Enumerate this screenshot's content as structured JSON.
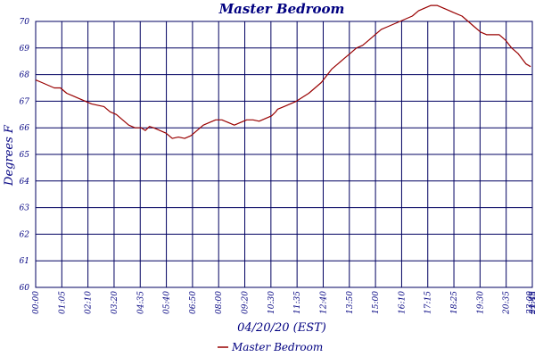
{
  "chart_data": {
    "type": "line",
    "title": "Master Bedroom",
    "xlabel": "04/20/20 (EST)",
    "ylabel": "Degrees F",
    "ylim": [
      60,
      70
    ],
    "yticks": [
      "60",
      "61",
      "62",
      "63",
      "64",
      "65",
      "66",
      "67",
      "68",
      "69",
      "70"
    ],
    "xticks": [
      "00:00",
      "01:05",
      "02:10",
      "03:20",
      "04:35",
      "05:40",
      "06:50",
      "08:00",
      "09:20",
      "10:30",
      "11:35",
      "12:40",
      "13:50",
      "15:00",
      "16:10",
      "17:15",
      "18:25",
      "19:30",
      "20:35",
      "21:45",
      "23:00",
      "23:55"
    ],
    "grid": true,
    "legend_position": "bottom",
    "colors": {
      "series": "#990000",
      "grid": "#000060",
      "text": "#000080"
    },
    "series": [
      {
        "name": "Master Bedroom",
        "x": [
          0,
          0.3,
          0.6,
          0.9,
          1.2,
          1.5,
          1.8,
          2.1,
          2.4,
          2.7,
          3.0,
          3.3,
          3.6,
          3.9,
          4.2,
          4.5,
          4.8,
          5.1,
          5.3,
          5.5,
          5.7,
          6.0,
          6.3,
          6.6,
          6.9,
          7.2,
          7.5,
          7.8,
          8.1,
          8.4,
          8.7,
          9.0,
          9.3,
          9.6,
          9.9,
          10.2,
          10.5,
          10.8,
          11.1,
          11.4,
          11.6,
          11.7,
          12.0,
          12.3,
          12.6,
          12.9,
          13.2,
          13.5,
          13.8,
          14.0,
          14.3,
          14.6,
          14.9,
          15.2,
          15.5,
          15.8,
          16.1,
          16.4,
          16.7,
          17.0,
          17.3,
          17.6,
          17.9,
          18.2,
          18.5,
          18.8,
          19.1,
          19.4,
          19.7,
          20.0,
          20.3,
          20.6,
          20.9,
          21.2,
          21.5,
          21.8,
          22.1,
          22.4,
          22.7,
          23.0,
          23.3,
          23.5,
          23.7,
          23.92
        ],
        "values": [
          67.8,
          67.7,
          67.6,
          67.5,
          67.5,
          67.3,
          67.2,
          67.1,
          67.0,
          66.9,
          66.85,
          66.8,
          66.6,
          66.5,
          66.3,
          66.1,
          66.0,
          66.0,
          65.9,
          66.05,
          66.0,
          65.9,
          65.8,
          65.6,
          65.65,
          65.6,
          65.7,
          65.9,
          66.1,
          66.2,
          66.3,
          66.3,
          66.2,
          66.1,
          66.2,
          66.3,
          66.3,
          66.25,
          66.35,
          66.45,
          66.6,
          66.7,
          66.8,
          66.9,
          67.0,
          67.15,
          67.3,
          67.5,
          67.7,
          67.9,
          68.2,
          68.4,
          68.6,
          68.8,
          69.0,
          69.1,
          69.3,
          69.5,
          69.7,
          69.8,
          69.9,
          70.0,
          70.1,
          70.2,
          70.4,
          70.5,
          70.6,
          70.6,
          70.5,
          70.4,
          70.3,
          70.2,
          70.0,
          69.8,
          69.6,
          69.5,
          69.5,
          69.5,
          69.3,
          69.0,
          68.8,
          68.6,
          68.4,
          68.3
        ]
      }
    ]
  }
}
